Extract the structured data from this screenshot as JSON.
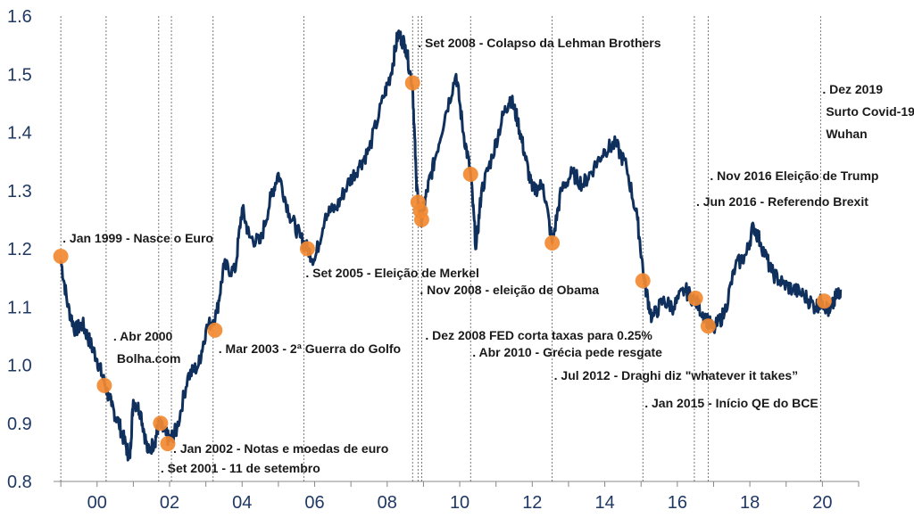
{
  "chart_data": {
    "type": "line",
    "colors": {
      "line": "#0f2f5c",
      "marker": "#f28a32",
      "axis_text": "#1f3864"
    },
    "ylim": [
      0.8,
      1.6
    ],
    "xlim": [
      1998.8,
      2021.0
    ],
    "y_ticks": [
      {
        "value": 0.8,
        "label": "0.8"
      },
      {
        "value": 0.9,
        "label": "0.9"
      },
      {
        "value": 1.0,
        "label": "1.0"
      },
      {
        "value": 1.1,
        "label": "1.1"
      },
      {
        "value": 1.2,
        "label": "1.2"
      },
      {
        "value": 1.3,
        "label": "1.3"
      },
      {
        "value": 1.4,
        "label": "1.4"
      },
      {
        "value": 1.5,
        "label": "1.5"
      },
      {
        "value": 1.6,
        "label": "1.6"
      }
    ],
    "x_ticks": [
      {
        "value": 2000,
        "label": "00"
      },
      {
        "value": 2002,
        "label": "02"
      },
      {
        "value": 2004,
        "label": "04"
      },
      {
        "value": 2006,
        "label": "06"
      },
      {
        "value": 2008,
        "label": "08"
      },
      {
        "value": 2010,
        "label": "10"
      },
      {
        "value": 2012,
        "label": "12"
      },
      {
        "value": 2014,
        "label": "14"
      },
      {
        "value": 2016,
        "label": "16"
      },
      {
        "value": 2018,
        "label": "18"
      },
      {
        "value": 2020,
        "label": "20"
      }
    ],
    "series": [
      {
        "points": [
          [
            1999.0,
            1.18
          ],
          [
            1999.2,
            1.1
          ],
          [
            1999.4,
            1.06
          ],
          [
            1999.6,
            1.07
          ],
          [
            1999.8,
            1.04
          ],
          [
            2000.0,
            1.01
          ],
          [
            2000.2,
            0.97
          ],
          [
            2000.4,
            0.93
          ],
          [
            2000.6,
            0.9
          ],
          [
            2000.8,
            0.86
          ],
          [
            2000.9,
            0.84
          ],
          [
            2001.0,
            0.94
          ],
          [
            2001.2,
            0.92
          ],
          [
            2001.4,
            0.85
          ],
          [
            2001.6,
            0.87
          ],
          [
            2001.7,
            0.9
          ],
          [
            2001.9,
            0.88
          ],
          [
            2002.0,
            0.87
          ],
          [
            2002.2,
            0.89
          ],
          [
            2002.5,
            0.98
          ],
          [
            2002.8,
            1.0
          ],
          [
            2003.0,
            1.06
          ],
          [
            2003.3,
            1.09
          ],
          [
            2003.5,
            1.17
          ],
          [
            2003.8,
            1.16
          ],
          [
            2004.0,
            1.27
          ],
          [
            2004.2,
            1.22
          ],
          [
            2004.5,
            1.21
          ],
          [
            2004.8,
            1.29
          ],
          [
            2005.0,
            1.33
          ],
          [
            2005.3,
            1.26
          ],
          [
            2005.6,
            1.22
          ],
          [
            2005.8,
            1.2
          ],
          [
            2006.0,
            1.18
          ],
          [
            2006.3,
            1.26
          ],
          [
            2006.6,
            1.27
          ],
          [
            2006.9,
            1.31
          ],
          [
            2007.2,
            1.34
          ],
          [
            2007.5,
            1.37
          ],
          [
            2007.9,
            1.46
          ],
          [
            2008.1,
            1.5
          ],
          [
            2008.3,
            1.57
          ],
          [
            2008.5,
            1.55
          ],
          [
            2008.7,
            1.48
          ],
          [
            2008.8,
            1.32
          ],
          [
            2008.85,
            1.28
          ],
          [
            2008.95,
            1.25
          ],
          [
            2009.1,
            1.3
          ],
          [
            2009.3,
            1.35
          ],
          [
            2009.6,
            1.43
          ],
          [
            2009.9,
            1.5
          ],
          [
            2010.1,
            1.4
          ],
          [
            2010.3,
            1.33
          ],
          [
            2010.45,
            1.2
          ],
          [
            2010.6,
            1.3
          ],
          [
            2010.9,
            1.36
          ],
          [
            2011.2,
            1.43
          ],
          [
            2011.4,
            1.46
          ],
          [
            2011.6,
            1.42
          ],
          [
            2011.8,
            1.36
          ],
          [
            2012.0,
            1.3
          ],
          [
            2012.3,
            1.31
          ],
          [
            2012.55,
            1.21
          ],
          [
            2012.8,
            1.3
          ],
          [
            2013.1,
            1.33
          ],
          [
            2013.4,
            1.31
          ],
          [
            2013.7,
            1.34
          ],
          [
            2014.0,
            1.37
          ],
          [
            2014.3,
            1.38
          ],
          [
            2014.6,
            1.34
          ],
          [
            2014.9,
            1.25
          ],
          [
            2015.1,
            1.14
          ],
          [
            2015.3,
            1.08
          ],
          [
            2015.6,
            1.11
          ],
          [
            2015.9,
            1.1
          ],
          [
            2016.2,
            1.13
          ],
          [
            2016.5,
            1.11
          ],
          [
            2016.8,
            1.08
          ],
          [
            2017.0,
            1.06
          ],
          [
            2017.3,
            1.09
          ],
          [
            2017.6,
            1.17
          ],
          [
            2017.9,
            1.19
          ],
          [
            2018.1,
            1.24
          ],
          [
            2018.3,
            1.21
          ],
          [
            2018.6,
            1.16
          ],
          [
            2018.9,
            1.14
          ],
          [
            2019.2,
            1.13
          ],
          [
            2019.5,
            1.12
          ],
          [
            2019.8,
            1.1
          ],
          [
            2020.0,
            1.11
          ],
          [
            2020.2,
            1.09
          ],
          [
            2020.4,
            1.12
          ],
          [
            2020.5,
            1.13
          ]
        ]
      }
    ],
    "markers": [
      [
        1999.0,
        1.187
      ],
      [
        2000.2,
        0.965
      ],
      [
        2001.75,
        0.9
      ],
      [
        2001.95,
        0.865
      ],
      [
        2003.25,
        1.06
      ],
      [
        2005.8,
        1.2
      ],
      [
        2008.7,
        1.485
      ],
      [
        2008.85,
        1.28
      ],
      [
        2008.92,
        1.265
      ],
      [
        2008.95,
        1.25
      ],
      [
        2010.3,
        1.328
      ],
      [
        2012.55,
        1.21
      ],
      [
        2015.05,
        1.145
      ],
      [
        2016.5,
        1.115
      ],
      [
        2016.85,
        1.067
      ],
      [
        2020.05,
        1.11
      ]
    ],
    "events": [
      {
        "x": 1999.0,
        "lines": [
          ". Jan 1999 - Nasce o Euro"
        ]
      },
      {
        "x": 2000.25,
        "lines": [
          ". Abr 2000",
          "Bolha.com"
        ]
      },
      {
        "x": 2001.7,
        "lines": [
          ". Set 2001 - 11 de setembro"
        ]
      },
      {
        "x": 2002.05,
        "lines": [
          ". Jan 2002 - Notas e moedas de euro"
        ]
      },
      {
        "x": 2003.2,
        "lines": [
          ". Mar 2003 - 2ª Guerra do Golfo"
        ]
      },
      {
        "x": 2005.7,
        "lines": [
          ". Set 2005 - Eleição de Merkel"
        ]
      },
      {
        "x": 2008.7,
        "lines": [
          ". Set 2008 - Colapso da Lehman Brothers"
        ]
      },
      {
        "x": 2008.85,
        "lines": [
          ". Nov 2008 - eleição de Obama"
        ]
      },
      {
        "x": 2008.95,
        "lines": [
          ". Dez 2008 FED corta taxas para 0.25%"
        ]
      },
      {
        "x": 2010.3,
        "lines": [
          ". Abr 2010 - Grécia pede resgate"
        ]
      },
      {
        "x": 2012.55,
        "lines": [
          ". Jul 2012 - Draghi diz \"whatever it takes”"
        ]
      },
      {
        "x": 2015.05,
        "lines": [
          ". Jan 2015 - Início QE do BCE"
        ]
      },
      {
        "x": 2016.47,
        "lines": [
          ". Jun 2016 - Referendo Brexit"
        ]
      },
      {
        "x": 2016.85,
        "lines": [
          ". Nov 2016 Eleição de Trump"
        ]
      },
      {
        "x": 2019.95,
        "lines": [
          ". Dez 2019",
          "Surto Covid-19",
          "Wuhan"
        ]
      }
    ]
  }
}
